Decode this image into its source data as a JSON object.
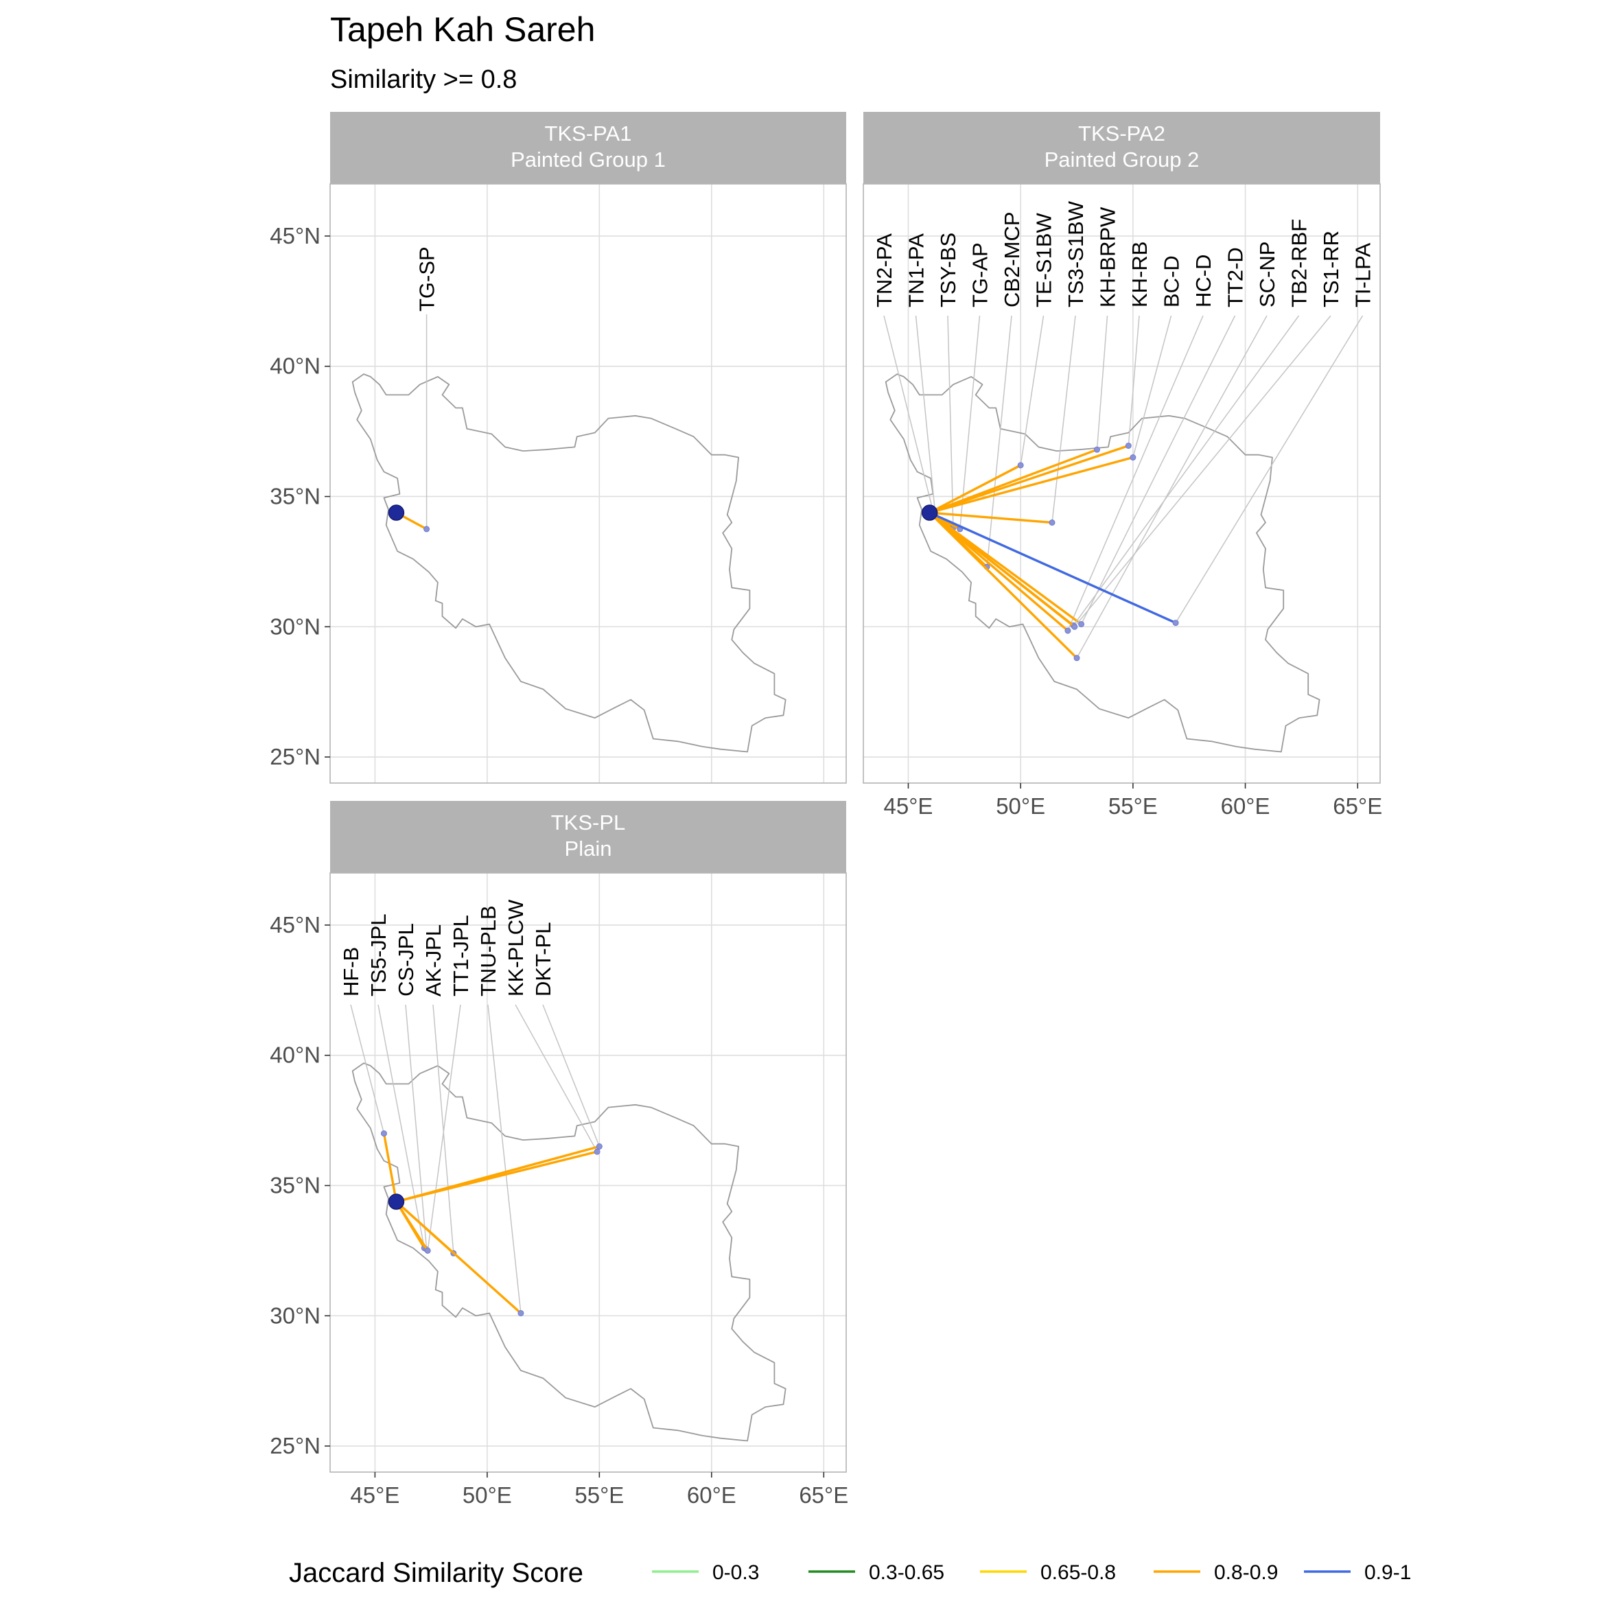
{
  "title": "Tapeh Kah Sareh",
  "subtitle": "Similarity >= 0.8",
  "legend": {
    "title": "Jaccard Similarity Score",
    "items": [
      {
        "label": "0-0.3",
        "color": "#90ee90"
      },
      {
        "label": "0.3-0.65",
        "color": "#228b22"
      },
      {
        "label": "0.65-0.8",
        "color": "#ffd700"
      },
      {
        "label": "0.8-0.9",
        "color": "#ffa500"
      },
      {
        "label": "0.9-1",
        "color": "#4169e1"
      }
    ]
  },
  "chart_data": {
    "type": "map",
    "x_range": [
      43,
      66
    ],
    "y_range": [
      24,
      47
    ],
    "x_ticks": [
      45,
      50,
      55,
      60,
      65
    ],
    "x_tick_labels": [
      "45°E",
      "50°E",
      "55°E",
      "60°E",
      "65°E"
    ],
    "y_ticks": [
      25,
      30,
      35,
      40,
      45
    ],
    "y_tick_labels": [
      "25°N",
      "30°N",
      "35°N",
      "40°N",
      "45°N"
    ],
    "grid": true,
    "origin": {
      "lon": 45.95,
      "lat": 34.38
    },
    "panels": [
      {
        "strip": [
          "TKS-PA1",
          "Painted Group 1"
        ],
        "links": [
          {
            "label": "TG-SP",
            "lon": 47.3,
            "lat": 33.75,
            "score": "0.8-0.9"
          }
        ]
      },
      {
        "strip": [
          "TKS-PA2",
          "Painted Group 2"
        ],
        "links": [
          {
            "label": "TN2-PA",
            "lon": 46.1,
            "lat": 34.45,
            "score": "0.8-0.9"
          },
          {
            "label": "TN1-PA",
            "lon": 46.2,
            "lat": 34.35,
            "score": "0.8-0.9"
          },
          {
            "label": "TSY-BS",
            "lon": 47.0,
            "lat": 33.8,
            "score": "0.8-0.9"
          },
          {
            "label": "TG-AP",
            "lon": 47.3,
            "lat": 33.75,
            "score": "0.8-0.9"
          },
          {
            "label": "CB2-MCP",
            "lon": 48.5,
            "lat": 32.3,
            "score": "0.8-0.9"
          },
          {
            "label": "TE-S1BW",
            "lon": 50.0,
            "lat": 36.2,
            "score": "0.8-0.9"
          },
          {
            "label": "TS3-S1BW",
            "lon": 51.4,
            "lat": 34.0,
            "score": "0.8-0.9"
          },
          {
            "label": "KH-BRPW",
            "lon": 53.4,
            "lat": 36.8,
            "score": "0.8-0.9"
          },
          {
            "label": "KH-RB",
            "lon": 54.8,
            "lat": 36.95,
            "score": "0.8-0.9"
          },
          {
            "label": "BC-D",
            "lon": 55.0,
            "lat": 36.5,
            "score": "0.8-0.9"
          },
          {
            "label": "HC-D",
            "lon": 52.1,
            "lat": 29.85,
            "score": "0.8-0.9"
          },
          {
            "label": "TT2-D",
            "lon": 52.7,
            "lat": 30.1,
            "score": "0.8-0.9"
          },
          {
            "label": "SC-NP",
            "lon": 52.5,
            "lat": 28.8,
            "score": "0.8-0.9"
          },
          {
            "label": "TB2-RBF",
            "lon": 52.35,
            "lat": 30.05,
            "score": "0.8-0.9"
          },
          {
            "label": "TS1-RR",
            "lon": 52.4,
            "lat": 30.0,
            "score": "0.8-0.9"
          },
          {
            "label": "TI-LPA",
            "lon": 56.9,
            "lat": 30.15,
            "score": "0.9-1"
          }
        ]
      },
      {
        "strip": [
          "TKS-PL",
          "Plain"
        ],
        "links": [
          {
            "label": "HF-B",
            "lon": 45.4,
            "lat": 37.0,
            "score": "0.8-0.9"
          },
          {
            "label": "TS5-JPL",
            "lon": 47.2,
            "lat": 32.6,
            "score": "0.8-0.9"
          },
          {
            "label": "CS-JPL",
            "lon": 47.3,
            "lat": 32.55,
            "score": "0.8-0.9"
          },
          {
            "label": "AK-JPL",
            "lon": 48.5,
            "lat": 32.4,
            "score": "0.8-0.9"
          },
          {
            "label": "TT1-JPL",
            "lon": 47.35,
            "lat": 32.5,
            "score": "0.8-0.9"
          },
          {
            "label": "TNU-PLB",
            "lon": 51.5,
            "lat": 30.1,
            "score": "0.8-0.9"
          },
          {
            "label": "KK-PLCW",
            "lon": 54.9,
            "lat": 36.3,
            "score": "0.8-0.9"
          },
          {
            "label": "DKT-PL",
            "lon": 55.0,
            "lat": 36.5,
            "score": "0.8-0.9"
          }
        ]
      }
    ]
  }
}
